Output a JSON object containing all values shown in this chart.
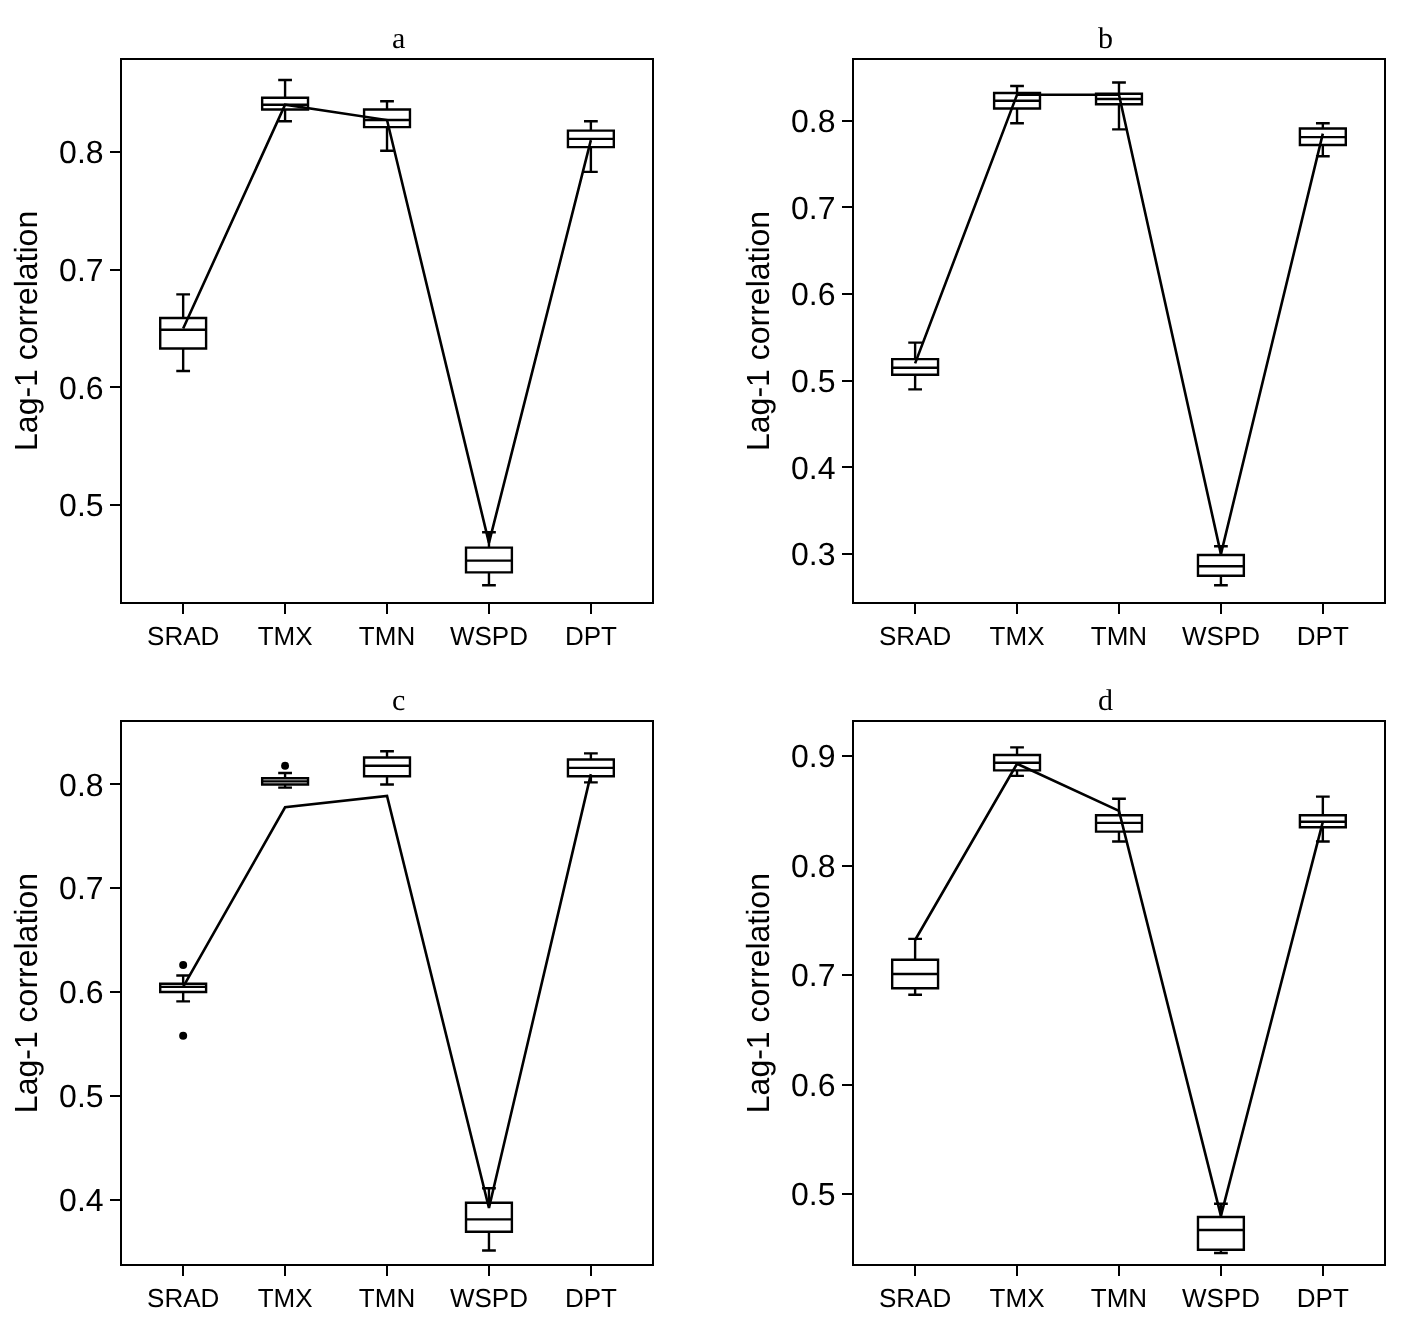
{
  "chart_data": [
    {
      "type": "box",
      "title": "a",
      "ylabel": "Lag-1 correlation",
      "categories": [
        "SRAD",
        "TMX",
        "TMN",
        "WSPD",
        "DPT"
      ],
      "boxes": [
        {
          "low": 0.614,
          "q1": 0.633,
          "median": 0.649,
          "q3": 0.659,
          "high": 0.679
        },
        {
          "low": 0.826,
          "q1": 0.836,
          "median": 0.84,
          "q3": 0.846,
          "high": 0.861
        },
        {
          "low": 0.801,
          "q1": 0.821,
          "median": 0.827,
          "q3": 0.836,
          "high": 0.843
        },
        {
          "low": 0.432,
          "q1": 0.443,
          "median": 0.453,
          "q3": 0.464,
          "high": 0.477
        },
        {
          "low": 0.783,
          "q1": 0.804,
          "median": 0.811,
          "q3": 0.818,
          "high": 0.826
        }
      ],
      "series": [
        {
          "type": "line",
          "color": "#000000",
          "values": [
            0.65,
            0.84,
            0.827,
            0.468,
            0.81
          ]
        }
      ],
      "ylim": [
        0.418,
        0.878
      ],
      "yticks": [
        0.5,
        0.6,
        0.7,
        0.8
      ]
    },
    {
      "type": "box",
      "title": "b",
      "ylabel": "Lag-1 correlation",
      "categories": [
        "SRAD",
        "TMX",
        "TMN",
        "WSPD",
        "DPT"
      ],
      "boxes": [
        {
          "low": 0.49,
          "q1": 0.507,
          "median": 0.515,
          "q3": 0.525,
          "high": 0.544
        },
        {
          "low": 0.797,
          "q1": 0.814,
          "median": 0.823,
          "q3": 0.832,
          "high": 0.84
        },
        {
          "low": 0.79,
          "q1": 0.819,
          "median": 0.825,
          "q3": 0.831,
          "high": 0.844
        },
        {
          "low": 0.264,
          "q1": 0.275,
          "median": 0.286,
          "q3": 0.299,
          "high": 0.309
        },
        {
          "low": 0.759,
          "q1": 0.772,
          "median": 0.781,
          "q3": 0.791,
          "high": 0.797
        }
      ],
      "series": [
        {
          "type": "line",
          "color": "#000000",
          "values": [
            0.52,
            0.83,
            0.83,
            0.3,
            0.785
          ]
        }
      ],
      "ylim": [
        0.245,
        0.87
      ],
      "yticks": [
        0.3,
        0.4,
        0.5,
        0.6,
        0.7,
        0.8
      ]
    },
    {
      "type": "box",
      "title": "c",
      "ylabel": "Lag-1 correlation",
      "categories": [
        "SRAD",
        "TMX",
        "TMN",
        "WSPD",
        "DPT"
      ],
      "boxes": [
        {
          "low": 0.591,
          "q1": 0.6,
          "median": 0.605,
          "q3": 0.608,
          "high": 0.616,
          "outliers": [
            0.626,
            0.558
          ]
        },
        {
          "low": 0.797,
          "q1": 0.8,
          "median": 0.803,
          "q3": 0.806,
          "high": 0.811,
          "outliers": [
            0.818
          ]
        },
        {
          "low": 0.8,
          "q1": 0.808,
          "median": 0.818,
          "q3": 0.826,
          "high": 0.832
        },
        {
          "low": 0.351,
          "q1": 0.369,
          "median": 0.381,
          "q3": 0.397,
          "high": 0.411
        },
        {
          "low": 0.802,
          "q1": 0.808,
          "median": 0.816,
          "q3": 0.824,
          "high": 0.83
        }
      ],
      "series": [
        {
          "type": "line",
          "color": "#000000",
          "values": [
            0.605,
            0.778,
            0.789,
            0.392,
            0.81
          ]
        }
      ],
      "ylim": [
        0.338,
        0.86
      ],
      "yticks": [
        0.4,
        0.5,
        0.6,
        0.7,
        0.8
      ]
    },
    {
      "type": "box",
      "title": "d",
      "ylabel": "Lag-1 correlation",
      "categories": [
        "SRAD",
        "TMX",
        "TMN",
        "WSPD",
        "DPT"
      ],
      "boxes": [
        {
          "low": 0.682,
          "q1": 0.688,
          "median": 0.701,
          "q3": 0.714,
          "high": 0.733
        },
        {
          "low": 0.882,
          "q1": 0.887,
          "median": 0.894,
          "q3": 0.901,
          "high": 0.908
        },
        {
          "low": 0.822,
          "q1": 0.831,
          "median": 0.839,
          "q3": 0.846,
          "high": 0.861
        },
        {
          "low": 0.446,
          "q1": 0.449,
          "median": 0.467,
          "q3": 0.479,
          "high": 0.491
        },
        {
          "low": 0.822,
          "q1": 0.835,
          "median": 0.84,
          "q3": 0.846,
          "high": 0.863
        }
      ],
      "series": [
        {
          "type": "line",
          "color": "#000000",
          "values": [
            0.732,
            0.893,
            0.85,
            0.48,
            0.84
          ]
        }
      ],
      "ylim": [
        0.436,
        0.931
      ],
      "yticks": [
        0.5,
        0.6,
        0.7,
        0.8,
        0.9
      ]
    }
  ]
}
